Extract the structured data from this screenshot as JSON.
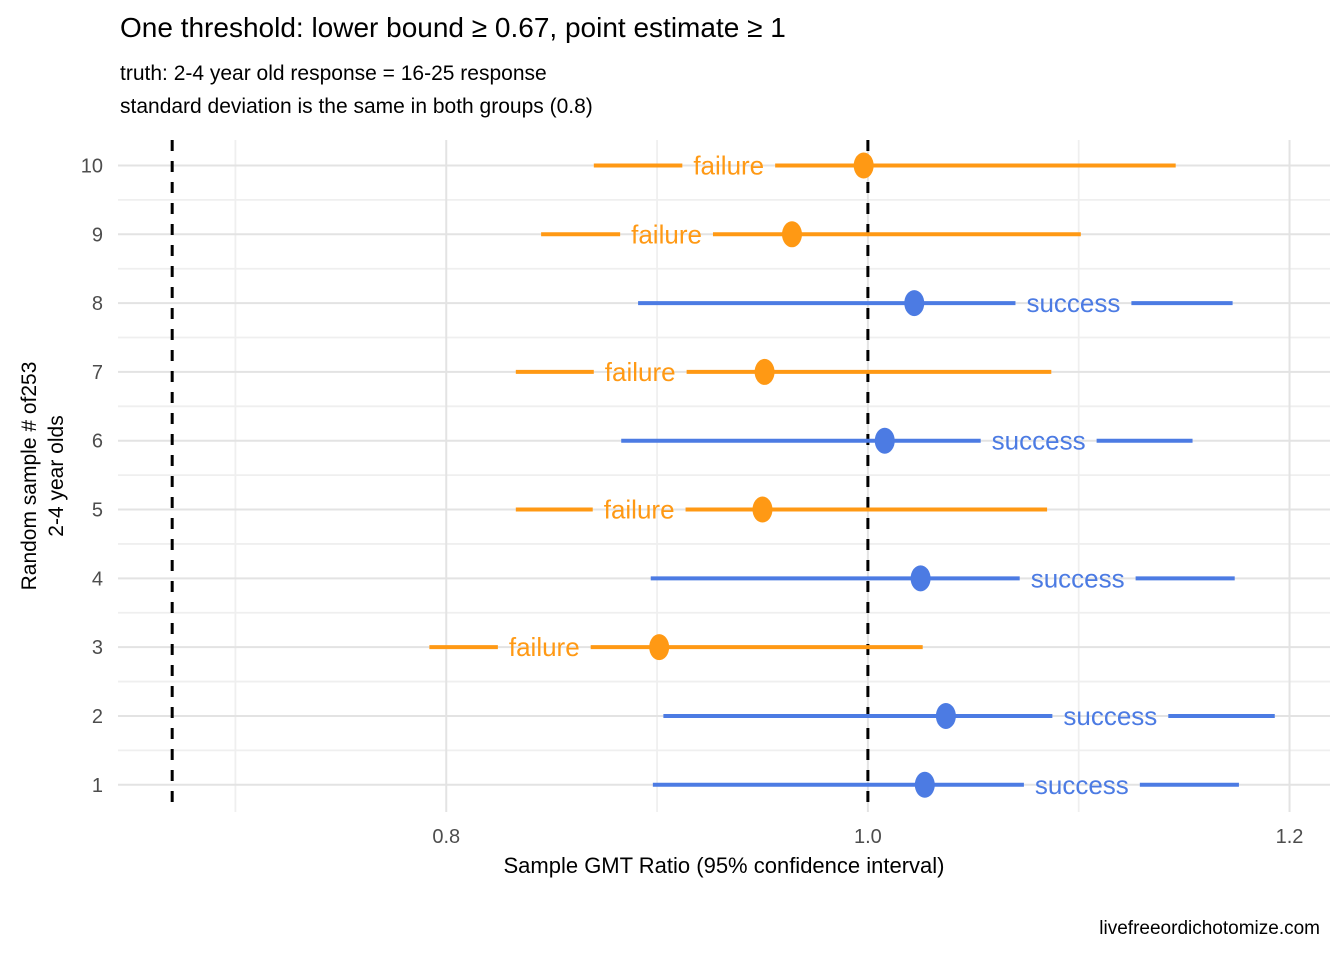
{
  "chart_data": {
    "type": "scatter",
    "subtype": "horizontal-confidence-intervals",
    "title": "One threshold: lower bound ≥ 0.67, point estimate ≥ 1",
    "subtitle": "truth: 2-4 year old response = 16-25 response\nstandard deviation is the same in both groups (0.8)",
    "xlabel": "Sample GMT Ratio (95% confidence interval)",
    "ylabel": "Random sample # of253\n2-4 year olds",
    "caption": "livefreeordichotomize.com",
    "x_ticks": [
      0.8,
      1.0,
      1.2
    ],
    "x_tick_labels": [
      "0.8",
      "1.0",
      "1.2"
    ],
    "x_minor_gridlines": [
      0.7,
      0.9,
      1.1
    ],
    "xlim": [
      0.6443,
      1.2192
    ],
    "y_ticks": [
      1,
      2,
      3,
      4,
      5,
      6,
      7,
      8,
      9,
      10
    ],
    "ylim": [
      0.55,
      10.45
    ],
    "grid": true,
    "legend_position": "none",
    "reference_lines": [
      {
        "x": 0.67,
        "style": "dashed",
        "meaning": "lower bound threshold"
      },
      {
        "x": 1.0,
        "style": "dashed",
        "meaning": "point estimate threshold"
      }
    ],
    "colors": {
      "success": "#4C7BE3",
      "failure": "#FF9914",
      "reference": "#000000",
      "tick_label": "#4D4D4D"
    },
    "samples": [
      {
        "sample": 1,
        "lower": 0.898,
        "point": 1.027,
        "upper": 1.176,
        "outcome": "success",
        "label": "success"
      },
      {
        "sample": 2,
        "lower": 0.903,
        "point": 1.037,
        "upper": 1.193,
        "outcome": "success",
        "label": "success"
      },
      {
        "sample": 3,
        "lower": 0.792,
        "point": 0.901,
        "upper": 1.026,
        "outcome": "failure",
        "label": "failure"
      },
      {
        "sample": 4,
        "lower": 0.897,
        "point": 1.025,
        "upper": 1.174,
        "outcome": "success",
        "label": "success"
      },
      {
        "sample": 5,
        "lower": 0.833,
        "point": 0.95,
        "upper": 1.085,
        "outcome": "failure",
        "label": "failure"
      },
      {
        "sample": 6,
        "lower": 0.883,
        "point": 1.008,
        "upper": 1.154,
        "outcome": "success",
        "label": "success"
      },
      {
        "sample": 7,
        "lower": 0.833,
        "point": 0.951,
        "upper": 1.087,
        "outcome": "failure",
        "label": "failure"
      },
      {
        "sample": 8,
        "lower": 0.891,
        "point": 1.022,
        "upper": 1.173,
        "outcome": "success",
        "label": "success"
      },
      {
        "sample": 9,
        "lower": 0.845,
        "point": 0.964,
        "upper": 1.101,
        "outcome": "failure",
        "label": "failure"
      },
      {
        "sample": 10,
        "lower": 0.87,
        "point": 0.998,
        "upper": 1.146,
        "outcome": "failure",
        "label": "failure"
      }
    ]
  }
}
